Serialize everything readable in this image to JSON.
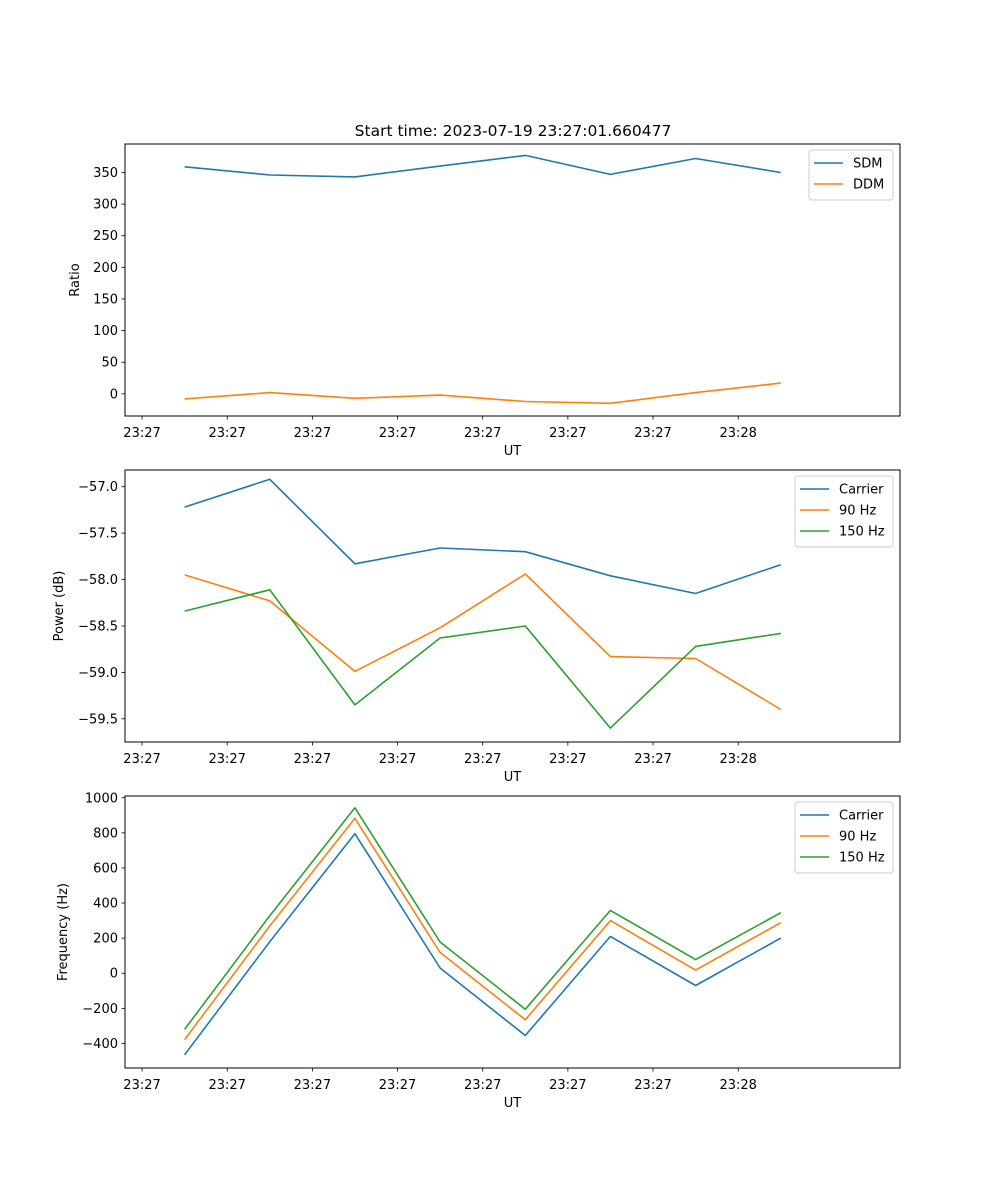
{
  "figure_title": "Start time: 2023-07-19 23:27:01.660477",
  "chart_data": [
    {
      "type": "line",
      "title": "Start time: 2023-07-19 23:27:01.660477",
      "xlabel": "UT",
      "ylabel": "Ratio",
      "x_ticks": [
        "23:27",
        "23:27",
        "23:27",
        "23:27",
        "23:27",
        "23:27",
        "23:27"
      ],
      "x_ticks_end": "23:28",
      "x": [
        1,
        2,
        3,
        4,
        5,
        6,
        7,
        8
      ],
      "xlim": [
        0.3,
        9.4
      ],
      "ylim": [
        -35,
        395
      ],
      "y_ticks": [
        0,
        50,
        100,
        150,
        200,
        250,
        300,
        350
      ],
      "legend_position": "top-right",
      "series": [
        {
          "name": "SDM",
          "color": "#1f77b4",
          "values": [
            359,
            346,
            343,
            360,
            377,
            347,
            372,
            350
          ]
        },
        {
          "name": "DDM",
          "color": "#ff7f0e",
          "values": [
            -8,
            2,
            -7,
            -2,
            -12,
            -15,
            2,
            17
          ]
        }
      ]
    },
    {
      "type": "line",
      "xlabel": "UT",
      "ylabel": "Power (dB)",
      "x_ticks": [
        "23:27",
        "23:27",
        "23:27",
        "23:27",
        "23:27",
        "23:27",
        "23:27"
      ],
      "x_ticks_end": "23:28",
      "x": [
        1,
        2,
        3,
        4,
        5,
        6,
        7,
        8
      ],
      "xlim": [
        0.3,
        9.4
      ],
      "ylim": [
        -59.75,
        -56.82
      ],
      "y_ticks": [
        -59.5,
        -59.0,
        -58.5,
        -58.0,
        -57.5,
        -57.0
      ],
      "y_tick_labels": [
        "−59.5",
        "−59.0",
        "−58.5",
        "−58.0",
        "−57.5",
        "−57.0"
      ],
      "legend_position": "top-right",
      "series": [
        {
          "name": "Carrier",
          "color": "#1f77b4",
          "values": [
            -57.22,
            -56.92,
            -57.83,
            -57.66,
            -57.7,
            -57.96,
            -58.15,
            -57.84
          ]
        },
        {
          "name": "90 Hz",
          "color": "#ff7f0e",
          "values": [
            -57.95,
            -58.23,
            -58.99,
            -58.52,
            -57.94,
            -58.83,
            -58.85,
            -59.4
          ]
        },
        {
          "name": "150 Hz",
          "color": "#2ca02c",
          "values": [
            -58.34,
            -58.11,
            -59.35,
            -58.63,
            -58.5,
            -59.6,
            -58.72,
            -58.58
          ]
        }
      ]
    },
    {
      "type": "line",
      "xlabel": "UT",
      "ylabel": "Frequency (Hz)",
      "x_ticks": [
        "23:27",
        "23:27",
        "23:27",
        "23:27",
        "23:27",
        "23:27",
        "23:27"
      ],
      "x_ticks_end": "23:28",
      "x": [
        1,
        2,
        3,
        4,
        5,
        6,
        7,
        8
      ],
      "xlim": [
        0.3,
        9.4
      ],
      "ylim": [
        -540,
        1010
      ],
      "y_ticks": [
        -400,
        -200,
        0,
        200,
        400,
        600,
        800,
        1000
      ],
      "y_tick_labels": [
        "−400",
        "−200",
        "0",
        "200",
        "400",
        "600",
        "800",
        "1000"
      ],
      "legend_position": "top-right",
      "series": [
        {
          "name": "Carrier",
          "color": "#1f77b4",
          "values": [
            -465,
            180,
            795,
            30,
            -355,
            210,
            -70,
            200
          ]
        },
        {
          "name": "90 Hz",
          "color": "#ff7f0e",
          "values": [
            -378,
            270,
            883,
            118,
            -265,
            300,
            18,
            288
          ]
        },
        {
          "name": "150 Hz",
          "color": "#2ca02c",
          "values": [
            -320,
            328,
            943,
            178,
            -205,
            358,
            78,
            345
          ]
        }
      ]
    }
  ]
}
